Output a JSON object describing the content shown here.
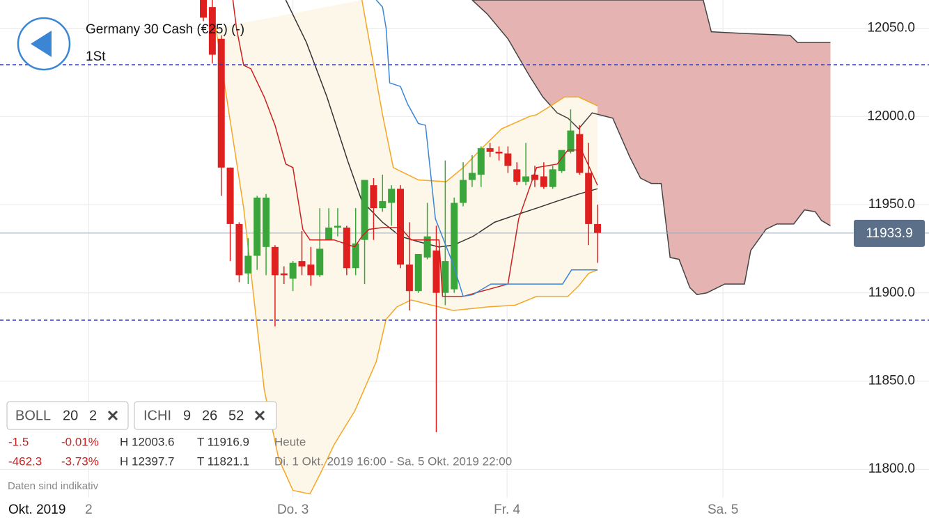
{
  "header": {
    "title": "Germany 30 Cash (€25) (-)",
    "interval": "1St"
  },
  "panel": {
    "indicators": [
      {
        "name": "BOLL",
        "params": [
          20,
          2
        ]
      },
      {
        "name": "ICHI",
        "params": [
          9,
          26,
          52
        ]
      }
    ],
    "stats": [
      [
        "-1.5",
        "-0.01%",
        "H 12003.6",
        "T 11916.9",
        "Heute"
      ],
      [
        "-462.3",
        "-3.73%",
        "H 12397.7",
        "T 11821.1",
        "Di. 1 Okt. 2019 16:00 - Sa. 5 Okt. 2019 22:00"
      ]
    ],
    "disclaimer": "Daten sind indikativ"
  },
  "chart_data": {
    "type": "candlestick",
    "x_period": "Okt. 2019",
    "xlim": [
      -22.7,
      81.0
    ],
    "xticks": [
      {
        "value": -12.8,
        "label": "2"
      },
      {
        "value": 10.0,
        "label": "Do. 3"
      },
      {
        "value": 33.9,
        "label": "Fr. 4"
      },
      {
        "value": 58.0,
        "label": "Sa. 5"
      }
    ],
    "ylim": [
      11783.9,
      12066
    ],
    "yticks": [
      {
        "value": 11800,
        "label": "11800.0"
      },
      {
        "value": 11850,
        "label": "11850.0"
      },
      {
        "value": 11900,
        "label": "11900.0"
      },
      {
        "value": 11950,
        "label": "11950.0"
      },
      {
        "value": 12000,
        "label": "12000.0"
      },
      {
        "value": 12050,
        "label": "12050.0"
      }
    ],
    "grid": true,
    "up_color": "#3aa53a",
    "down_color": "#e0201f",
    "x": [
      0,
      1,
      2,
      3,
      4,
      5,
      6,
      7,
      8,
      9,
      10,
      11,
      12,
      13,
      14,
      15,
      16,
      17,
      18,
      19,
      20,
      21,
      22,
      23,
      24,
      25,
      26,
      27,
      28,
      29,
      30,
      31,
      32,
      33,
      34,
      35,
      36,
      37,
      38,
      39,
      40,
      41,
      42,
      43,
      44
    ],
    "open": [
      12066,
      12062,
      12044,
      11971,
      11939,
      11911,
      11921,
      11926,
      11926,
      11911,
      11908,
      11918,
      11916,
      11910,
      11930,
      11937,
      11937,
      11914,
      11930,
      11961,
      11948,
      11951,
      11959,
      11916,
      11901,
      11920,
      11924,
      11900,
      11902,
      11951,
      11964,
      11967,
      11982,
      11980,
      11979,
      11970,
      11963,
      11967,
      11966,
      11960,
      11969,
      11980,
      11990,
      11968,
      11939
    ],
    "high": [
      12066,
      12066,
      12046,
      11971,
      11940,
      11931,
      11955,
      11956,
      11927,
      11915,
      11918,
      11935,
      11926,
      11948,
      11948,
      11948,
      11938,
      11948,
      11964,
      11965,
      11967,
      11961,
      11961,
      11940,
      11922,
      11951,
      11938,
      11975,
      11954,
      11974,
      11978,
      11983,
      11985,
      11983,
      11983,
      11974,
      11985,
      11972,
      11974,
      11972,
      11981,
      12004,
      11995,
      11985,
      11950
    ],
    "low": [
      12054,
      12030,
      11955,
      11918,
      11906,
      11905,
      11913,
      11910,
      11881,
      11905,
      11901,
      11910,
      11904,
      11909,
      11930,
      11932,
      11910,
      11910,
      11905,
      11930,
      11946,
      11938,
      11914,
      11890,
      11900,
      11919,
      11821,
      11893,
      11900,
      11949,
      11960,
      11960,
      11977,
      11975,
      11968,
      11961,
      11961,
      11960,
      11959,
      11959,
      11968,
      11979,
      11967,
      11927,
      11917
    ],
    "close": [
      12056,
      12035,
      11971,
      11939,
      11910,
      11921,
      11954,
      11954,
      11910,
      11910,
      11917,
      11915,
      11910,
      11925,
      11937,
      11938,
      11914,
      11928,
      11964,
      11948,
      11952,
      11959,
      11916,
      11901,
      11922,
      11932,
      11900,
      11918,
      11951,
      11964,
      11968,
      11982,
      11980,
      11979,
      11972,
      11963,
      11966,
      11964,
      11960,
      11970,
      11981,
      11992,
      11968,
      11939,
      11934
    ],
    "bollinger": {
      "color": "#f5a623",
      "mid_color": "#333333",
      "fill": "#fdf7e9",
      "upper": {
        "x": [
          17.7,
          20.0,
          21.2,
          24.0,
          27.1,
          29.0,
          30.9,
          33.3,
          36.4,
          37.2,
          39.1,
          40.3,
          41.9,
          44.0
        ],
        "values": [
          12066,
          12001,
          11971,
          11964,
          11963,
          11971,
          11981,
          11993,
          12000,
          12001,
          12007,
          12011,
          12011,
          12006
        ]
      },
      "middle": {
        "x": [
          9.2,
          11.5,
          13.8,
          16.1,
          17.7,
          20.0,
          22.0,
          24.0,
          26.3,
          27.9,
          30.1,
          32.5,
          34.8,
          37.2,
          39.5,
          41.9,
          44.0
        ],
        "values": [
          12066,
          12042,
          12011,
          11975,
          11952,
          11940,
          11932,
          11929,
          11926,
          11927,
          11932,
          11940,
          11944,
          11948,
          11952,
          11956,
          11959
        ]
      },
      "lower": {
        "x": [
          1.4,
          4.5,
          6.8,
          8.4,
          10.0,
          11.9,
          13.1,
          14.6,
          16.9,
          19.3,
          20.4,
          21.6,
          23.2,
          25.5,
          27.9,
          31.7,
          34.8,
          37.2,
          40.7,
          41.9,
          43.0,
          44.0
        ],
        "values": [
          12050,
          11948,
          11845,
          11806,
          11788,
          11786,
          11798,
          11814,
          11833,
          11861,
          11885,
          11892,
          11896,
          11893,
          11890,
          11892,
          11893,
          11898,
          11898,
          11904,
          11911,
          11913
        ]
      }
    },
    "ichimoku": {
      "cloud_color": "#e6b3b3",
      "edge_color": "#444444",
      "tenkan": {
        "color": "#cc1f1f",
        "x": [
          3.3,
          3.7,
          4.5,
          5.3,
          6.8,
          8.0,
          9.2,
          10.0,
          11.1,
          11.9,
          14.6,
          16.9,
          17.7,
          18.5,
          20.0,
          22.0,
          23.2,
          26.3,
          26.7,
          29.0,
          34.0,
          35.2,
          37.2,
          39.5,
          40.7,
          42.2,
          44.0
        ],
        "values": [
          12066,
          12050,
          12029,
          12027,
          12011,
          11995,
          11973,
          11971,
          11936,
          11930,
          11930,
          11926,
          11932,
          11936,
          11937,
          11937,
          11930,
          11930,
          11898,
          11898,
          11905,
          11942,
          11971,
          11973,
          11981,
          11981,
          11961
        ]
      },
      "kijun": {
        "color": "#3a86d4",
        "x": [
          19.3,
          20.0,
          20.4,
          20.8,
          22.0,
          22.8,
          24.0,
          24.8,
          25.9,
          27.9,
          29.0,
          30.1,
          32.1,
          40.1,
          41.1,
          44.0
        ],
        "values": [
          12066,
          12062,
          12050,
          12019,
          12017,
          12007,
          11996,
          11995,
          11942,
          11916,
          11898,
          11899,
          11905,
          11905,
          11913,
          11913
        ]
      },
      "span_a": {
        "x": [
          30.0,
          55.8,
          56.7,
          60.4,
          65.5,
          66.3,
          67.5,
          70.0
        ],
        "values": [
          12066,
          12066,
          12048,
          12047,
          12046,
          12042,
          12042,
          12042
        ]
      },
      "span_b": {
        "x": [
          30.0,
          31.7,
          34.0,
          35.6,
          36.4,
          37.9,
          39.5,
          40.7,
          41.9,
          43.4,
          45.7,
          47.6,
          48.8,
          50.0,
          51.1,
          52.1,
          53.1,
          54.3,
          55.1,
          56.2,
          58.2,
          60.4,
          61.1,
          62.8,
          64.0,
          65.1,
          65.9,
          67.1,
          68.3,
          69.0,
          70.0
        ],
        "values": [
          12066,
          12058,
          12044,
          12030,
          12023,
          12011,
          12002,
          11999,
          11993,
          12002,
          11999,
          11977,
          11965,
          11962,
          11962,
          11920,
          11919,
          11903,
          11899,
          11900,
          11905,
          11905,
          11924,
          11936,
          11939,
          11939,
          11939,
          11947,
          11946,
          11941,
          11938
        ]
      }
    },
    "levels": {
      "color": "#2b3bc4",
      "values": [
        12029.3,
        11884.5
      ]
    },
    "last_price": 11933.9,
    "last_price_color": "#5b6f88",
    "last_price_line_color": "#9aa8b6"
  }
}
